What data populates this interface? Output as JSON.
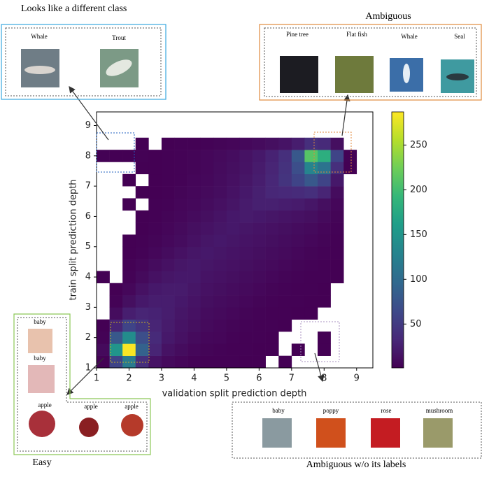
{
  "chart_data": {
    "type": "hist2d",
    "xlabel": "validation split prediction depth",
    "ylabel": "train split prediction depth",
    "xlim": [
      1,
      9.5
    ],
    "ylim": [
      1,
      9.45
    ],
    "xticks": [
      1,
      2,
      3,
      4,
      5,
      6,
      7,
      8,
      9
    ],
    "yticks": [
      1,
      2,
      3,
      4,
      5,
      6,
      7,
      8,
      9
    ],
    "xbins": [
      1,
      1.4,
      1.8,
      2.2,
      2.6,
      3,
      3.4,
      3.8,
      4.2,
      4.6,
      5,
      5.4,
      5.8,
      6.2,
      6.6,
      7,
      7.4,
      7.8,
      8.2,
      8.6,
      9
    ],
    "ybins": [
      1,
      1.4,
      1.8,
      2.2,
      2.6,
      3,
      3.4,
      3.8,
      4.2,
      4.6,
      5,
      5.4,
      5.8,
      6.2,
      6.6,
      7,
      7.4,
      7.8,
      8.2,
      8.6,
      9
    ],
    "colormap": "viridis",
    "clim": [
      1,
      287
    ],
    "colorbar_ticks": [
      50,
      100,
      150,
      200,
      250
    ],
    "z": [
      [
        2,
        60,
        120,
        40,
        15,
        8,
        5,
        3,
        2,
        2,
        2,
        1,
        1,
        null,
        1,
        null,
        null,
        null,
        null,
        null
      ],
      [
        8,
        150,
        285,
        90,
        30,
        15,
        10,
        6,
        4,
        3,
        2,
        2,
        1,
        1,
        null,
        1,
        null,
        1,
        null,
        null
      ],
      [
        3,
        80,
        140,
        70,
        35,
        20,
        14,
        9,
        6,
        5,
        3,
        2,
        2,
        1,
        null,
        null,
        null,
        1,
        null,
        null
      ],
      [
        1,
        30,
        60,
        45,
        30,
        22,
        16,
        12,
        8,
        6,
        4,
        3,
        2,
        2,
        1,
        null,
        null,
        null,
        null,
        null
      ],
      [
        null,
        10,
        25,
        30,
        28,
        24,
        18,
        14,
        10,
        8,
        6,
        4,
        3,
        2,
        2,
        1,
        1,
        null,
        null,
        null
      ],
      [
        null,
        3,
        12,
        20,
        24,
        24,
        20,
        16,
        12,
        10,
        8,
        6,
        4,
        3,
        2,
        2,
        1,
        1,
        null,
        null
      ],
      [
        null,
        1,
        6,
        14,
        20,
        22,
        22,
        18,
        14,
        12,
        10,
        8,
        6,
        4,
        3,
        2,
        2,
        1,
        null,
        null
      ],
      [
        1,
        null,
        3,
        8,
        14,
        18,
        20,
        20,
        16,
        14,
        12,
        10,
        8,
        6,
        4,
        3,
        2,
        2,
        1,
        null
      ],
      [
        null,
        null,
        2,
        5,
        10,
        14,
        18,
        20,
        18,
        16,
        14,
        12,
        10,
        8,
        6,
        4,
        3,
        2,
        1,
        null
      ],
      [
        null,
        null,
        1,
        3,
        6,
        10,
        14,
        18,
        20,
        18,
        16,
        14,
        12,
        10,
        8,
        6,
        4,
        3,
        2,
        null
      ],
      [
        null,
        null,
        1,
        2,
        4,
        7,
        10,
        14,
        18,
        20,
        18,
        16,
        14,
        12,
        10,
        8,
        6,
        4,
        2,
        null
      ],
      [
        null,
        null,
        null,
        1,
        3,
        5,
        8,
        12,
        15,
        18,
        20,
        18,
        16,
        14,
        12,
        10,
        8,
        5,
        3,
        null
      ],
      [
        null,
        null,
        null,
        1,
        2,
        4,
        6,
        9,
        12,
        16,
        20,
        22,
        20,
        18,
        16,
        14,
        12,
        8,
        4,
        null
      ],
      [
        null,
        null,
        1,
        null,
        2,
        3,
        5,
        7,
        10,
        13,
        17,
        22,
        26,
        26,
        24,
        22,
        18,
        12,
        6,
        null
      ],
      [
        null,
        null,
        null,
        1,
        1,
        2,
        4,
        6,
        8,
        11,
        15,
        20,
        26,
        32,
        34,
        36,
        40,
        30,
        10,
        null
      ],
      [
        null,
        null,
        1,
        null,
        1,
        2,
        3,
        5,
        7,
        10,
        13,
        18,
        24,
        32,
        44,
        60,
        80,
        60,
        20,
        null
      ],
      [
        null,
        null,
        null,
        1,
        1,
        2,
        3,
        4,
        6,
        9,
        12,
        16,
        22,
        30,
        42,
        70,
        130,
        110,
        40,
        1
      ],
      [
        2,
        1,
        1,
        2,
        1,
        2,
        3,
        4,
        6,
        8,
        11,
        15,
        20,
        28,
        40,
        80,
        210,
        180,
        60,
        2
      ],
      [
        null,
        null,
        null,
        1,
        null,
        1,
        2,
        2,
        3,
        4,
        5,
        7,
        9,
        12,
        16,
        24,
        40,
        35,
        12,
        null
      ],
      [
        null,
        null,
        null,
        null,
        null,
        null,
        null,
        null,
        null,
        null,
        null,
        null,
        null,
        null,
        null,
        null,
        null,
        null,
        null,
        null
      ]
    ]
  },
  "panels": {
    "different": {
      "title": "Looks like a different class",
      "labels": [
        "Whale",
        "Trout"
      ]
    },
    "ambiguous": {
      "title": "Ambiguous",
      "labels": [
        "Pine tree",
        "Flat fish",
        "Whale",
        "Seal"
      ]
    },
    "easy": {
      "title": "Easy",
      "labels": [
        "baby",
        "baby",
        "apple",
        "apple",
        "apple"
      ]
    },
    "nolabels": {
      "title": "Ambiguous w/o its labels",
      "labels": [
        "baby",
        "poppy",
        "rose",
        "mushroom"
      ]
    }
  }
}
